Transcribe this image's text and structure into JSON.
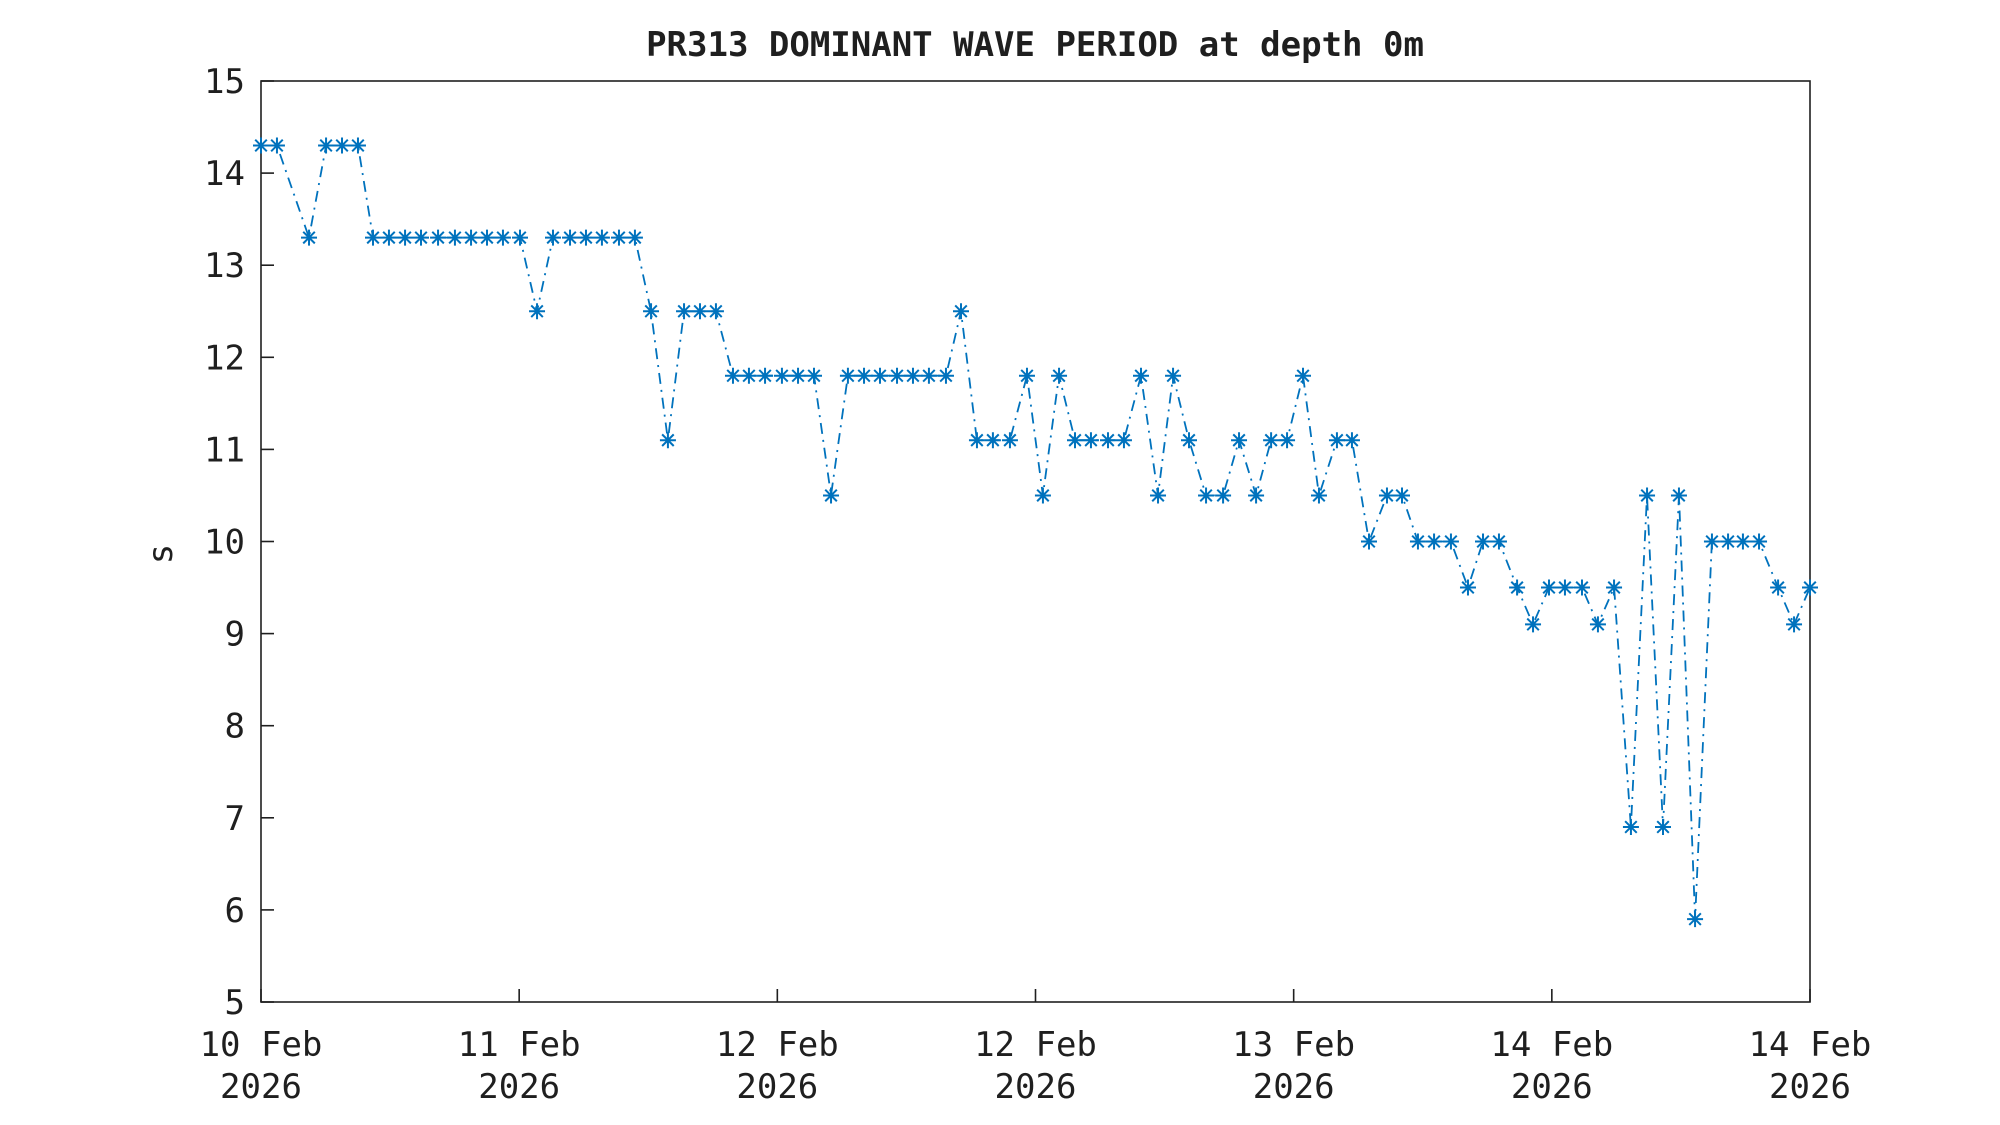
{
  "title": "PR313 DOMINANT WAVE PERIOD at depth 0m",
  "chart_data": {
    "type": "line",
    "title": "PR313 DOMINANT WAVE PERIOD at depth 0m",
    "xlabel": "",
    "ylabel": "s",
    "ylim": [
      5,
      15
    ],
    "y_ticks": [
      5,
      6,
      7,
      8,
      9,
      10,
      11,
      12,
      13,
      14,
      15
    ],
    "x_tick_labels_line1": [
      "10 Feb",
      "11 Feb",
      "12 Feb",
      "12 Feb",
      "13 Feb",
      "14 Feb",
      "14 Feb"
    ],
    "x_tick_labels_line2": [
      "2026",
      "2026",
      "2026",
      "2026",
      "2026",
      "2026",
      "2026"
    ],
    "grid": "off",
    "legend": "none",
    "line_color": "#0072BD",
    "line_style": "dash-dot",
    "marker": "asterisk",
    "axis_color": "#1f1f1f",
    "x_axis_note": "time from 10 Feb 2026 to 14 Feb 2026, points listed left to right as fraction 0-1 of x-axis width",
    "points_xfrac_seconds": [
      [
        0.0,
        14.3
      ],
      [
        0.0103,
        14.3
      ],
      [
        0.031,
        13.3
      ],
      [
        0.042,
        14.3
      ],
      [
        0.0523,
        14.3
      ],
      [
        0.0626,
        14.3
      ],
      [
        0.0723,
        13.3
      ],
      [
        0.0826,
        13.3
      ],
      [
        0.093,
        13.3
      ],
      [
        0.1033,
        13.3
      ],
      [
        0.1143,
        13.3
      ],
      [
        0.1252,
        13.3
      ],
      [
        0.1356,
        13.3
      ],
      [
        0.1459,
        13.3
      ],
      [
        0.1562,
        13.3
      ],
      [
        0.1672,
        13.3
      ],
      [
        0.1782,
        12.5
      ],
      [
        0.1885,
        13.3
      ],
      [
        0.1995,
        13.3
      ],
      [
        0.2098,
        13.3
      ],
      [
        0.2201,
        13.3
      ],
      [
        0.2311,
        13.3
      ],
      [
        0.2414,
        13.3
      ],
      [
        0.2518,
        12.5
      ],
      [
        0.2627,
        11.1
      ],
      [
        0.2731,
        12.5
      ],
      [
        0.2834,
        12.5
      ],
      [
        0.2937,
        12.5
      ],
      [
        0.3047,
        11.8
      ],
      [
        0.315,
        11.8
      ],
      [
        0.3254,
        11.8
      ],
      [
        0.3363,
        11.8
      ],
      [
        0.3467,
        11.8
      ],
      [
        0.357,
        11.8
      ],
      [
        0.368,
        10.5
      ],
      [
        0.3789,
        11.8
      ],
      [
        0.3893,
        11.8
      ],
      [
        0.3996,
        11.8
      ],
      [
        0.4106,
        11.8
      ],
      [
        0.4209,
        11.8
      ],
      [
        0.4312,
        11.8
      ],
      [
        0.4422,
        11.8
      ],
      [
        0.4519,
        12.5
      ],
      [
        0.4622,
        11.1
      ],
      [
        0.4725,
        11.1
      ],
      [
        0.4835,
        11.1
      ],
      [
        0.4945,
        11.8
      ],
      [
        0.5048,
        10.5
      ],
      [
        0.5152,
        11.8
      ],
      [
        0.5255,
        11.1
      ],
      [
        0.5358,
        11.1
      ],
      [
        0.5468,
        11.1
      ],
      [
        0.5571,
        11.1
      ],
      [
        0.5681,
        11.8
      ],
      [
        0.5791,
        10.5
      ],
      [
        0.5888,
        11.8
      ],
      [
        0.5991,
        11.1
      ],
      [
        0.6101,
        10.5
      ],
      [
        0.6211,
        10.5
      ],
      [
        0.6314,
        11.1
      ],
      [
        0.6424,
        10.5
      ],
      [
        0.6521,
        11.1
      ],
      [
        0.6624,
        11.1
      ],
      [
        0.6727,
        11.8
      ],
      [
        0.683,
        10.5
      ],
      [
        0.6946,
        11.1
      ],
      [
        0.7043,
        11.1
      ],
      [
        0.7153,
        10.0
      ],
      [
        0.7269,
        10.5
      ],
      [
        0.7366,
        10.5
      ],
      [
        0.7469,
        10.0
      ],
      [
        0.7573,
        10.0
      ],
      [
        0.7682,
        10.0
      ],
      [
        0.7792,
        9.5
      ],
      [
        0.7889,
        10.0
      ],
      [
        0.7992,
        10.0
      ],
      [
        0.8109,
        9.5
      ],
      [
        0.8212,
        9.1
      ],
      [
        0.8315,
        9.5
      ],
      [
        0.8418,
        9.5
      ],
      [
        0.8528,
        9.5
      ],
      [
        0.8631,
        9.1
      ],
      [
        0.8735,
        9.5
      ],
      [
        0.8844,
        6.9
      ],
      [
        0.8948,
        10.5
      ],
      [
        0.9051,
        6.9
      ],
      [
        0.9154,
        10.5
      ],
      [
        0.9258,
        5.9
      ],
      [
        0.9367,
        10.0
      ],
      [
        0.9471,
        10.0
      ],
      [
        0.9567,
        10.0
      ],
      [
        0.9671,
        10.0
      ],
      [
        0.9794,
        9.5
      ],
      [
        0.9897,
        9.1
      ],
      [
        1.0,
        9.5
      ]
    ]
  },
  "layout_note_values_are_seconds": "dominant wave period in seconds"
}
